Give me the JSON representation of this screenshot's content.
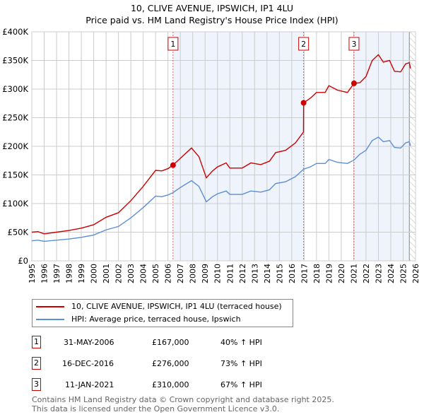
{
  "chart_data": {
    "type": "line",
    "title": "10, CLIVE AVENUE, IPSWICH, IP1 4LU",
    "subtitle": "Price paid vs. HM Land Registry's House Price Index (HPI)",
    "xlim": [
      1995,
      2026
    ],
    "ylim": [
      0,
      400000
    ],
    "y_ticks": [
      {
        "v": 0,
        "label": "£0"
      },
      {
        "v": 50000,
        "label": "£50K"
      },
      {
        "v": 100000,
        "label": "£100K"
      },
      {
        "v": 150000,
        "label": "£150K"
      },
      {
        "v": 200000,
        "label": "£200K"
      },
      {
        "v": 250000,
        "label": "£250K"
      },
      {
        "v": 300000,
        "label": "£300K"
      },
      {
        "v": 350000,
        "label": "£350K"
      },
      {
        "v": 400000,
        "label": "£400K"
      }
    ],
    "x_ticks": [
      "1995",
      "1996",
      "1997",
      "1998",
      "1999",
      "2000",
      "2001",
      "2002",
      "2003",
      "2004",
      "2005",
      "2006",
      "2007",
      "2008",
      "2009",
      "2010",
      "2011",
      "2012",
      "2013",
      "2014",
      "2015",
      "2016",
      "2017",
      "2018",
      "2019",
      "2020",
      "2021",
      "2022",
      "2023",
      "2024",
      "2025",
      "2026"
    ],
    "grid": true,
    "series": [
      {
        "name": "10, CLIVE AVENUE, IPSWICH, IP1 4LU (terraced house)",
        "color": "#cc0000",
        "x": [
          1995,
          1995.5,
          1996,
          1997,
          1998,
          1999,
          2000,
          2001,
          2002,
          2003,
          2004,
          2005,
          2005.5,
          2006,
          2006.4,
          2007,
          2007.9,
          2008.5,
          2009.1,
          2009.6,
          2010,
          2010.7,
          2011,
          2012,
          2012.7,
          2013.5,
          2014.2,
          2014.7,
          2015.5,
          2016.3,
          2016.95,
          2016.96,
          2017.5,
          2018,
          2018.7,
          2019,
          2019.7,
          2020.5,
          2021.03,
          2021.5,
          2022,
          2022.5,
          2023,
          2023.4,
          2023.9,
          2024.3,
          2024.8,
          2025.2,
          2025.5,
          2025.6
        ],
        "y": [
          50000,
          51000,
          47000,
          50000,
          53000,
          57000,
          63000,
          76000,
          84000,
          105000,
          130000,
          158000,
          157000,
          161000,
          167000,
          179000,
          197000,
          182000,
          145000,
          157000,
          164000,
          171000,
          162000,
          162000,
          171000,
          168000,
          174000,
          189000,
          193000,
          206000,
          225000,
          276000,
          284000,
          294000,
          294000,
          306000,
          298000,
          294000,
          310000,
          311000,
          322000,
          350000,
          360000,
          347000,
          350000,
          331000,
          330000,
          344000,
          346000,
          336000
        ]
      },
      {
        "name": "HPI: Average price, terraced house, Ipswich",
        "color": "#5b8fd4",
        "x": [
          1995,
          1995.5,
          1996,
          1997,
          1998,
          1999,
          2000,
          2001,
          2002,
          2003,
          2004,
          2005,
          2005.5,
          2006,
          2006.4,
          2007,
          2007.9,
          2008.5,
          2009.1,
          2009.6,
          2010,
          2010.7,
          2011,
          2012,
          2012.7,
          2013.5,
          2014.2,
          2014.7,
          2015.5,
          2016.3,
          2016.96,
          2017.5,
          2018,
          2018.7,
          2019,
          2019.7,
          2020.5,
          2021.03,
          2021.5,
          2022,
          2022.5,
          2023,
          2023.4,
          2023.9,
          2024.3,
          2024.8,
          2025.2,
          2025.5,
          2025.6
        ],
        "y": [
          35000,
          36000,
          34000,
          36000,
          38000,
          41000,
          45000,
          54000,
          60000,
          75000,
          93000,
          113000,
          112000,
          115000,
          119000,
          128000,
          140000,
          130000,
          103000,
          112000,
          117000,
          122000,
          116000,
          116000,
          122000,
          120000,
          124000,
          135000,
          138000,
          147000,
          160000,
          164000,
          170000,
          170000,
          177000,
          172000,
          170000,
          176000,
          186000,
          193000,
          210000,
          216000,
          208000,
          210000,
          198000,
          197000,
          206000,
          208000,
          201000
        ]
      }
    ],
    "sales": [
      {
        "n": "1",
        "date": "31-MAY-2006",
        "x": 2006.41,
        "price_value": 167000,
        "price": "£167,000",
        "hpi": "40% ↑ HPI"
      },
      {
        "n": "2",
        "date": "16-DEC-2016",
        "x": 2016.96,
        "price_value": 276000,
        "price": "£276,000",
        "hpi": "73% ↑ HPI"
      },
      {
        "n": "3",
        "date": "11-JAN-2021",
        "x": 2021.03,
        "price_value": 310000,
        "price": "£310,000",
        "hpi": "67% ↑ HPI"
      }
    ],
    "forecast_start": 2025.5
  },
  "footer": {
    "line1": "Contains HM Land Registry data © Crown copyright and database right 2025.",
    "line2": "This data is licensed under the Open Government Licence v3.0."
  }
}
